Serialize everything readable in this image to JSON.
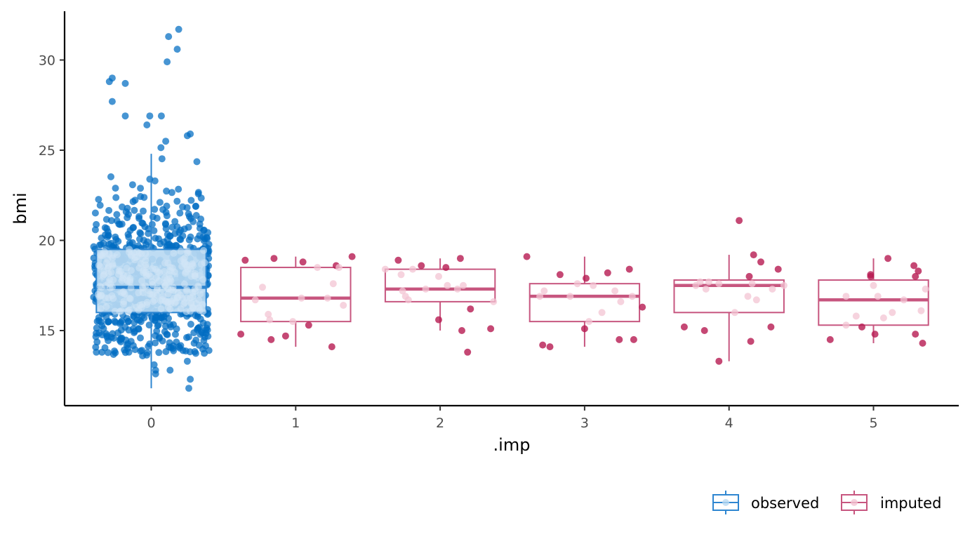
{
  "chart_data": {
    "type": "scatter",
    "xlabel": ".imp",
    "ylabel": "bmi",
    "x_ticks": [
      "0",
      "1",
      "2",
      "3",
      "4",
      "5"
    ],
    "y_ticks": [
      15,
      20,
      25,
      30
    ],
    "ylim": [
      11.2,
      32.6
    ],
    "grid": false,
    "legend_placement": "bottom-right",
    "colors": {
      "observed": "#006CC2",
      "observed_light": "#B8D9F2",
      "imputed": "#B61A51",
      "imputed_light": "#F3C4D3"
    },
    "series": [
      {
        "name": "observed",
        "color": "#006CC2"
      },
      {
        "name": "imputed",
        "color": "#B61A51"
      }
    ],
    "boxplots": [
      {
        "imp": 0,
        "group": "observed",
        "min": 11.8,
        "q1": 16.0,
        "median": 17.4,
        "q3": 19.5,
        "max": 24.8
      },
      {
        "imp": 1,
        "group": "imputed",
        "min": 14.1,
        "q1": 15.5,
        "median": 16.8,
        "q3": 18.5,
        "max": 19.1
      },
      {
        "imp": 2,
        "group": "imputed",
        "min": 15.0,
        "q1": 16.6,
        "median": 17.3,
        "q3": 18.4,
        "max": 19.0
      },
      {
        "imp": 3,
        "group": "imputed",
        "min": 14.1,
        "q1": 15.5,
        "median": 16.9,
        "q3": 17.6,
        "max": 19.1
      },
      {
        "imp": 4,
        "group": "imputed",
        "min": 13.3,
        "q1": 16.0,
        "median": 17.5,
        "q3": 17.8,
        "max": 19.2
      },
      {
        "imp": 5,
        "group": "imputed",
        "min": 14.3,
        "q1": 15.3,
        "median": 16.7,
        "q3": 17.8,
        "max": 19.0
      }
    ],
    "points": {
      "observed_count": 748,
      "observed_range": [
        11.8,
        31.7
      ],
      "observed_outliers": [
        {
          "x": 0.19,
          "y": 31.7
        },
        {
          "x": 0.12,
          "y": 31.3
        },
        {
          "x": 0.18,
          "y": 30.6
        },
        {
          "x": 0.11,
          "y": 29.9
        },
        {
          "x": -0.27,
          "y": 29.0
        },
        {
          "x": -0.29,
          "y": 28.8
        },
        {
          "x": -0.18,
          "y": 28.7
        },
        {
          "x": -0.27,
          "y": 27.7
        },
        {
          "x": -0.18,
          "y": 26.9
        },
        {
          "x": -0.01,
          "y": 26.9
        },
        {
          "x": 0.07,
          "y": 26.9
        },
        {
          "x": -0.03,
          "y": 26.4
        },
        {
          "x": 0.27,
          "y": 25.9
        },
        {
          "x": 0.25,
          "y": 25.8
        },
        {
          "x": 0.1,
          "y": 25.5
        },
        {
          "x": 0.03,
          "y": 12.8
        },
        {
          "x": 0.13,
          "y": 12.8
        },
        {
          "x": 0.03,
          "y": 12.6
        },
        {
          "x": 0.27,
          "y": 12.3
        },
        {
          "x": 0.26,
          "y": 11.8
        },
        {
          "x": -0.06,
          "y": 13.6
        },
        {
          "x": 0.02,
          "y": 13.1
        },
        {
          "x": -0.38,
          "y": 13.8
        },
        {
          "x": 0.25,
          "y": 13.3
        }
      ],
      "imputed": [
        {
          "imp": 1,
          "x": 0.62,
          "y": 14.8
        },
        {
          "imp": 1,
          "x": 0.65,
          "y": 18.9
        },
        {
          "imp": 1,
          "x": 0.72,
          "y": 16.7
        },
        {
          "imp": 1,
          "x": 0.77,
          "y": 17.4
        },
        {
          "imp": 1,
          "x": 0.81,
          "y": 15.9
        },
        {
          "imp": 1,
          "x": 0.82,
          "y": 15.6
        },
        {
          "imp": 1,
          "x": 0.83,
          "y": 14.5
        },
        {
          "imp": 1,
          "x": 0.85,
          "y": 19.0
        },
        {
          "imp": 1,
          "x": 0.93,
          "y": 14.7
        },
        {
          "imp": 1,
          "x": 0.98,
          "y": 15.5
        },
        {
          "imp": 1,
          "x": 1.04,
          "y": 16.8
        },
        {
          "imp": 1,
          "x": 1.05,
          "y": 18.8
        },
        {
          "imp": 1,
          "x": 1.09,
          "y": 15.3
        },
        {
          "imp": 1,
          "x": 1.15,
          "y": 18.5
        },
        {
          "imp": 1,
          "x": 1.22,
          "y": 16.8
        },
        {
          "imp": 1,
          "x": 1.25,
          "y": 14.1
        },
        {
          "imp": 1,
          "x": 1.26,
          "y": 17.6
        },
        {
          "imp": 1,
          "x": 1.28,
          "y": 18.6
        },
        {
          "imp": 1,
          "x": 1.3,
          "y": 18.5
        },
        {
          "imp": 1,
          "x": 1.33,
          "y": 16.4
        },
        {
          "imp": 1,
          "x": 1.39,
          "y": 19.1
        },
        {
          "imp": 2,
          "x": 1.62,
          "y": 18.4
        },
        {
          "imp": 2,
          "x": 1.71,
          "y": 18.9
        },
        {
          "imp": 2,
          "x": 1.73,
          "y": 18.1
        },
        {
          "imp": 2,
          "x": 1.74,
          "y": 17.2
        },
        {
          "imp": 2,
          "x": 1.76,
          "y": 16.9
        },
        {
          "imp": 2,
          "x": 1.78,
          "y": 16.7
        },
        {
          "imp": 2,
          "x": 1.81,
          "y": 18.4
        },
        {
          "imp": 2,
          "x": 1.87,
          "y": 18.6
        },
        {
          "imp": 2,
          "x": 1.9,
          "y": 17.3
        },
        {
          "imp": 2,
          "x": 1.99,
          "y": 15.6
        },
        {
          "imp": 2,
          "x": 1.99,
          "y": 18.0
        },
        {
          "imp": 2,
          "x": 2.04,
          "y": 18.5
        },
        {
          "imp": 2,
          "x": 2.05,
          "y": 17.5
        },
        {
          "imp": 2,
          "x": 2.12,
          "y": 17.3
        },
        {
          "imp": 2,
          "x": 2.14,
          "y": 19.0
        },
        {
          "imp": 2,
          "x": 2.15,
          "y": 15.0
        },
        {
          "imp": 2,
          "x": 2.16,
          "y": 17.5
        },
        {
          "imp": 2,
          "x": 2.19,
          "y": 13.8
        },
        {
          "imp": 2,
          "x": 2.21,
          "y": 16.2
        },
        {
          "imp": 2,
          "x": 2.35,
          "y": 15.1
        },
        {
          "imp": 2,
          "x": 2.37,
          "y": 16.6
        },
        {
          "imp": 3,
          "x": 2.6,
          "y": 19.1
        },
        {
          "imp": 3,
          "x": 2.69,
          "y": 16.9
        },
        {
          "imp": 3,
          "x": 2.71,
          "y": 14.2
        },
        {
          "imp": 3,
          "x": 2.72,
          "y": 17.2
        },
        {
          "imp": 3,
          "x": 2.76,
          "y": 14.1
        },
        {
          "imp": 3,
          "x": 2.83,
          "y": 18.1
        },
        {
          "imp": 3,
          "x": 2.9,
          "y": 16.9
        },
        {
          "imp": 3,
          "x": 2.95,
          "y": 17.6
        },
        {
          "imp": 3,
          "x": 3.0,
          "y": 15.1
        },
        {
          "imp": 3,
          "x": 3.01,
          "y": 17.9
        },
        {
          "imp": 3,
          "x": 3.03,
          "y": 15.5
        },
        {
          "imp": 3,
          "x": 3.06,
          "y": 17.5
        },
        {
          "imp": 3,
          "x": 3.12,
          "y": 16.0
        },
        {
          "imp": 3,
          "x": 3.16,
          "y": 18.2
        },
        {
          "imp": 3,
          "x": 3.21,
          "y": 17.2
        },
        {
          "imp": 3,
          "x": 3.24,
          "y": 14.5
        },
        {
          "imp": 3,
          "x": 3.25,
          "y": 16.6
        },
        {
          "imp": 3,
          "x": 3.31,
          "y": 18.4
        },
        {
          "imp": 3,
          "x": 3.33,
          "y": 16.9
        },
        {
          "imp": 3,
          "x": 3.34,
          "y": 14.5
        },
        {
          "imp": 3,
          "x": 3.4,
          "y": 16.3
        },
        {
          "imp": 4,
          "x": 3.69,
          "y": 15.2
        },
        {
          "imp": 4,
          "x": 3.77,
          "y": 17.5
        },
        {
          "imp": 4,
          "x": 3.8,
          "y": 17.7
        },
        {
          "imp": 4,
          "x": 3.83,
          "y": 15.0
        },
        {
          "imp": 4,
          "x": 3.84,
          "y": 17.3
        },
        {
          "imp": 4,
          "x": 3.86,
          "y": 17.7
        },
        {
          "imp": 4,
          "x": 3.93,
          "y": 17.6
        },
        {
          "imp": 4,
          "x": 3.93,
          "y": 13.3
        },
        {
          "imp": 4,
          "x": 4.04,
          "y": 16.0
        },
        {
          "imp": 4,
          "x": 4.07,
          "y": 21.1
        },
        {
          "imp": 4,
          "x": 4.13,
          "y": 16.9
        },
        {
          "imp": 4,
          "x": 4.14,
          "y": 18.0
        },
        {
          "imp": 4,
          "x": 4.15,
          "y": 14.4
        },
        {
          "imp": 4,
          "x": 4.17,
          "y": 19.2
        },
        {
          "imp": 4,
          "x": 4.19,
          "y": 16.7
        },
        {
          "imp": 4,
          "x": 4.22,
          "y": 18.8
        },
        {
          "imp": 4,
          "x": 4.29,
          "y": 15.2
        },
        {
          "imp": 4,
          "x": 4.3,
          "y": 17.3
        },
        {
          "imp": 4,
          "x": 4.34,
          "y": 18.4
        },
        {
          "imp": 4,
          "x": 4.38,
          "y": 17.5
        },
        {
          "imp": 4,
          "x": 4.16,
          "y": 17.6
        },
        {
          "imp": 5,
          "x": 4.7,
          "y": 14.5
        },
        {
          "imp": 5,
          "x": 4.81,
          "y": 15.3
        },
        {
          "imp": 5,
          "x": 4.81,
          "y": 16.9
        },
        {
          "imp": 5,
          "x": 4.88,
          "y": 15.8
        },
        {
          "imp": 5,
          "x": 4.92,
          "y": 15.2
        },
        {
          "imp": 5,
          "x": 4.98,
          "y": 18.0
        },
        {
          "imp": 5,
          "x": 4.98,
          "y": 18.1
        },
        {
          "imp": 5,
          "x": 5.0,
          "y": 17.5
        },
        {
          "imp": 5,
          "x": 5.01,
          "y": 14.8
        },
        {
          "imp": 5,
          "x": 5.03,
          "y": 16.9
        },
        {
          "imp": 5,
          "x": 5.07,
          "y": 15.7
        },
        {
          "imp": 5,
          "x": 5.1,
          "y": 19.0
        },
        {
          "imp": 5,
          "x": 5.13,
          "y": 16.0
        },
        {
          "imp": 5,
          "x": 5.21,
          "y": 16.7
        },
        {
          "imp": 5,
          "x": 5.28,
          "y": 18.6
        },
        {
          "imp": 5,
          "x": 5.29,
          "y": 14.8
        },
        {
          "imp": 5,
          "x": 5.29,
          "y": 18.0
        },
        {
          "imp": 5,
          "x": 5.31,
          "y": 18.3
        },
        {
          "imp": 5,
          "x": 5.33,
          "y": 16.1
        },
        {
          "imp": 5,
          "x": 5.34,
          "y": 14.3
        },
        {
          "imp": 5,
          "x": 5.36,
          "y": 17.3
        }
      ]
    }
  }
}
